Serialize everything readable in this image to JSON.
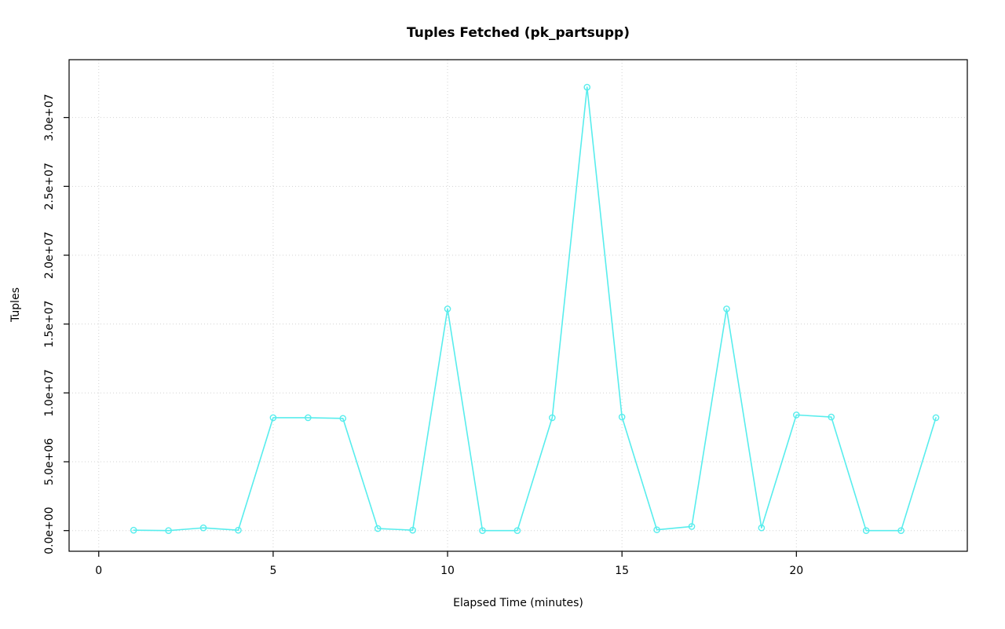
{
  "chart_data": {
    "type": "line",
    "title": "Tuples Fetched (pk_partsupp)",
    "xlabel": "Elapsed Time (minutes)",
    "ylabel": "Tuples",
    "x": [
      1,
      2,
      3,
      4,
      5,
      6,
      7,
      8,
      9,
      10,
      11,
      12,
      13,
      14,
      15,
      16,
      17,
      18,
      19,
      20,
      21,
      22,
      23,
      24
    ],
    "values": [
      30000,
      0,
      200000,
      30000,
      8200000,
      8200000,
      8150000,
      150000,
      30000,
      16100000,
      0,
      0,
      8200000,
      32200000,
      8250000,
      60000,
      300000,
      16100000,
      200000,
      8400000,
      8250000,
      0,
      0,
      8200000
    ],
    "x_ticks": [
      0,
      5,
      10,
      15,
      20
    ],
    "x_tick_labels": [
      "0",
      "5",
      "10",
      "15",
      "20"
    ],
    "y_ticks": [
      0,
      5000000,
      10000000,
      15000000,
      20000000,
      25000000,
      30000000
    ],
    "y_tick_labels": [
      "0.0e+00",
      "5.0e+06",
      "1.0e+07",
      "1.5e+07",
      "2.0e+07",
      "2.5e+07",
      "3.0e+07"
    ],
    "xlim": [
      -0.85,
      24.9
    ],
    "ylim": [
      -1500000,
      34200000
    ],
    "grid": true,
    "grid_style": "dotted",
    "legend": "none",
    "marker": "open-circle",
    "colors": {
      "line": "#58EDED",
      "grid": "#D3D3D3",
      "axis": "#000000",
      "background": "#FFFFFF"
    }
  }
}
